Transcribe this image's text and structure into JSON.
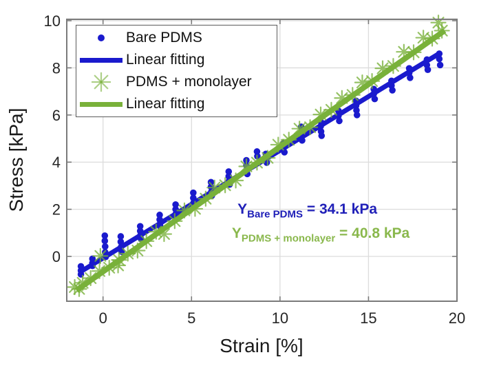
{
  "chart_data": {
    "type": "scatter",
    "title": "",
    "xlabel": "Strain [%]",
    "ylabel": "Stress [kPa]",
    "xlim": [
      -2.05,
      20
    ],
    "ylim": [
      -1.9,
      10.06
    ],
    "xticks": [
      0,
      5,
      10,
      15,
      20
    ],
    "yticks": [
      0,
      2,
      4,
      6,
      8,
      10
    ],
    "grid": true,
    "legend_position": "top-left",
    "colors": {
      "blue_series": "#1a1acd",
      "green_series": "#79b13a",
      "blue_text": "#2020b8",
      "green_text": "#8ab84d",
      "grid": "#dcdcdc",
      "axis_box": "#7a7a7a",
      "tick_label": "#262626"
    },
    "series": [
      {
        "name": "Bare PDMS",
        "type": "scatter",
        "marker": "dot",
        "color": "#1a1acd",
        "points": [
          [
            -1.25,
            -0.42
          ],
          [
            -1.25,
            -0.6
          ],
          [
            -1.25,
            -0.76
          ],
          [
            -0.6,
            -0.1
          ],
          [
            -0.6,
            -0.28
          ],
          [
            -0.6,
            -0.4
          ],
          [
            0.1,
            0.88
          ],
          [
            0.1,
            0.66
          ],
          [
            0.12,
            0.42
          ],
          [
            0.12,
            0.18
          ],
          [
            0.15,
            -0.02
          ],
          [
            1.0,
            0.85
          ],
          [
            1.0,
            0.62
          ],
          [
            1.02,
            0.4
          ],
          [
            1.05,
            0.2
          ],
          [
            2.1,
            1.28
          ],
          [
            2.1,
            1.08
          ],
          [
            2.12,
            0.9
          ],
          [
            2.15,
            0.74
          ],
          [
            3.2,
            1.76
          ],
          [
            3.2,
            1.56
          ],
          [
            3.22,
            1.38
          ],
          [
            3.25,
            1.24
          ],
          [
            4.1,
            2.2
          ],
          [
            4.1,
            2.0
          ],
          [
            4.12,
            1.82
          ],
          [
            4.15,
            1.66
          ],
          [
            5.1,
            2.7
          ],
          [
            5.1,
            2.48
          ],
          [
            5.12,
            2.28
          ],
          [
            5.15,
            2.12
          ],
          [
            6.1,
            3.15
          ],
          [
            6.1,
            2.95
          ],
          [
            6.12,
            2.74
          ],
          [
            6.15,
            2.58
          ],
          [
            7.1,
            3.6
          ],
          [
            7.1,
            3.4
          ],
          [
            7.12,
            3.2
          ],
          [
            7.15,
            3.05
          ],
          [
            8.1,
            4.08
          ],
          [
            8.1,
            3.86
          ],
          [
            8.12,
            3.65
          ],
          [
            8.15,
            3.5
          ],
          [
            8.7,
            4.45
          ],
          [
            8.72,
            4.25
          ],
          [
            9.2,
            4.35
          ],
          [
            9.2,
            4.15
          ],
          [
            9.25,
            3.98
          ],
          [
            10.2,
            4.8
          ],
          [
            10.2,
            4.6
          ],
          [
            10.25,
            4.42
          ],
          [
            11.2,
            5.5
          ],
          [
            11.2,
            5.28
          ],
          [
            11.22,
            5.08
          ],
          [
            11.25,
            4.92
          ],
          [
            12.3,
            5.72
          ],
          [
            12.3,
            5.52
          ],
          [
            12.32,
            5.3
          ],
          [
            12.35,
            5.12
          ],
          [
            13.3,
            6.18
          ],
          [
            13.3,
            5.96
          ],
          [
            13.35,
            5.75
          ],
          [
            14.3,
            6.6
          ],
          [
            14.3,
            6.4
          ],
          [
            14.32,
            6.2
          ],
          [
            14.35,
            6.0
          ],
          [
            15.3,
            7.1
          ],
          [
            15.3,
            6.9
          ],
          [
            15.35,
            6.68
          ],
          [
            16.3,
            7.45
          ],
          [
            16.3,
            7.25
          ],
          [
            16.35,
            7.05
          ],
          [
            17.3,
            7.98
          ],
          [
            17.3,
            7.78
          ],
          [
            17.35,
            7.58
          ],
          [
            18.3,
            8.35
          ],
          [
            18.3,
            8.12
          ],
          [
            18.35,
            7.92
          ],
          [
            19.0,
            8.6
          ],
          [
            19.0,
            8.38
          ],
          [
            19.05,
            8.12
          ]
        ]
      },
      {
        "name": "Linear fitting",
        "type": "line",
        "color": "#1a1acd",
        "linewidth": 7,
        "points": [
          [
            -1.25,
            -0.64
          ],
          [
            19.0,
            8.61
          ]
        ],
        "fit_modulus_kPa": 34.1
      },
      {
        "name": "PDMS + monolayer",
        "type": "scatter",
        "marker": "asterisk",
        "color": "#79b13a",
        "points": [
          [
            -1.6,
            -1.3
          ],
          [
            -1.35,
            -1.38
          ],
          [
            -1.15,
            -1.12
          ],
          [
            -0.7,
            -0.92
          ],
          [
            -0.2,
            -0.62
          ],
          [
            -0.15,
            0.02
          ],
          [
            0.35,
            -0.48
          ],
          [
            0.85,
            -0.38
          ],
          [
            0.9,
            -0.15
          ],
          [
            1.4,
            0.12
          ],
          [
            1.95,
            0.25
          ],
          [
            2.45,
            0.65
          ],
          [
            3.0,
            1.05
          ],
          [
            3.45,
            0.95
          ],
          [
            4.05,
            1.5
          ],
          [
            4.6,
            1.95
          ],
          [
            5.2,
            2.02
          ],
          [
            5.8,
            2.45
          ],
          [
            6.3,
            2.92
          ],
          [
            6.9,
            3.02
          ],
          [
            7.5,
            3.22
          ],
          [
            8.1,
            3.82
          ],
          [
            8.7,
            3.98
          ],
          [
            9.3,
            4.18
          ],
          [
            9.9,
            4.74
          ],
          [
            10.5,
            4.95
          ],
          [
            11.1,
            5.42
          ],
          [
            11.7,
            5.48
          ],
          [
            12.3,
            6.02
          ],
          [
            12.9,
            6.22
          ],
          [
            13.5,
            6.72
          ],
          [
            14.1,
            6.85
          ],
          [
            14.65,
            7.38
          ],
          [
            15.2,
            7.44
          ],
          [
            15.8,
            7.98
          ],
          [
            16.4,
            8.08
          ],
          [
            17.0,
            8.68
          ],
          [
            17.55,
            8.66
          ],
          [
            18.1,
            9.28
          ],
          [
            18.6,
            9.24
          ],
          [
            18.95,
            9.92
          ],
          [
            19.15,
            9.58
          ]
        ]
      },
      {
        "name": "Linear fitting",
        "type": "line",
        "color": "#79b13a",
        "linewidth": 8,
        "points": [
          [
            -1.5,
            -1.44
          ],
          [
            19.3,
            9.58
          ]
        ],
        "fit_modulus_kPa": 40.8
      }
    ],
    "annotations": [
      {
        "prefix": "Y",
        "subscript": "Bare PDMS",
        "suffix": " = 34.1 kPa",
        "color": "#2020b8",
        "x": 7.6,
        "y": 2.34
      },
      {
        "prefix": "Y",
        "subscript": "PDMS + monolayer",
        "suffix": " = 40.8 kPa",
        "color": "#8ab84d",
        "x": 7.28,
        "y": 1.32
      }
    ]
  }
}
